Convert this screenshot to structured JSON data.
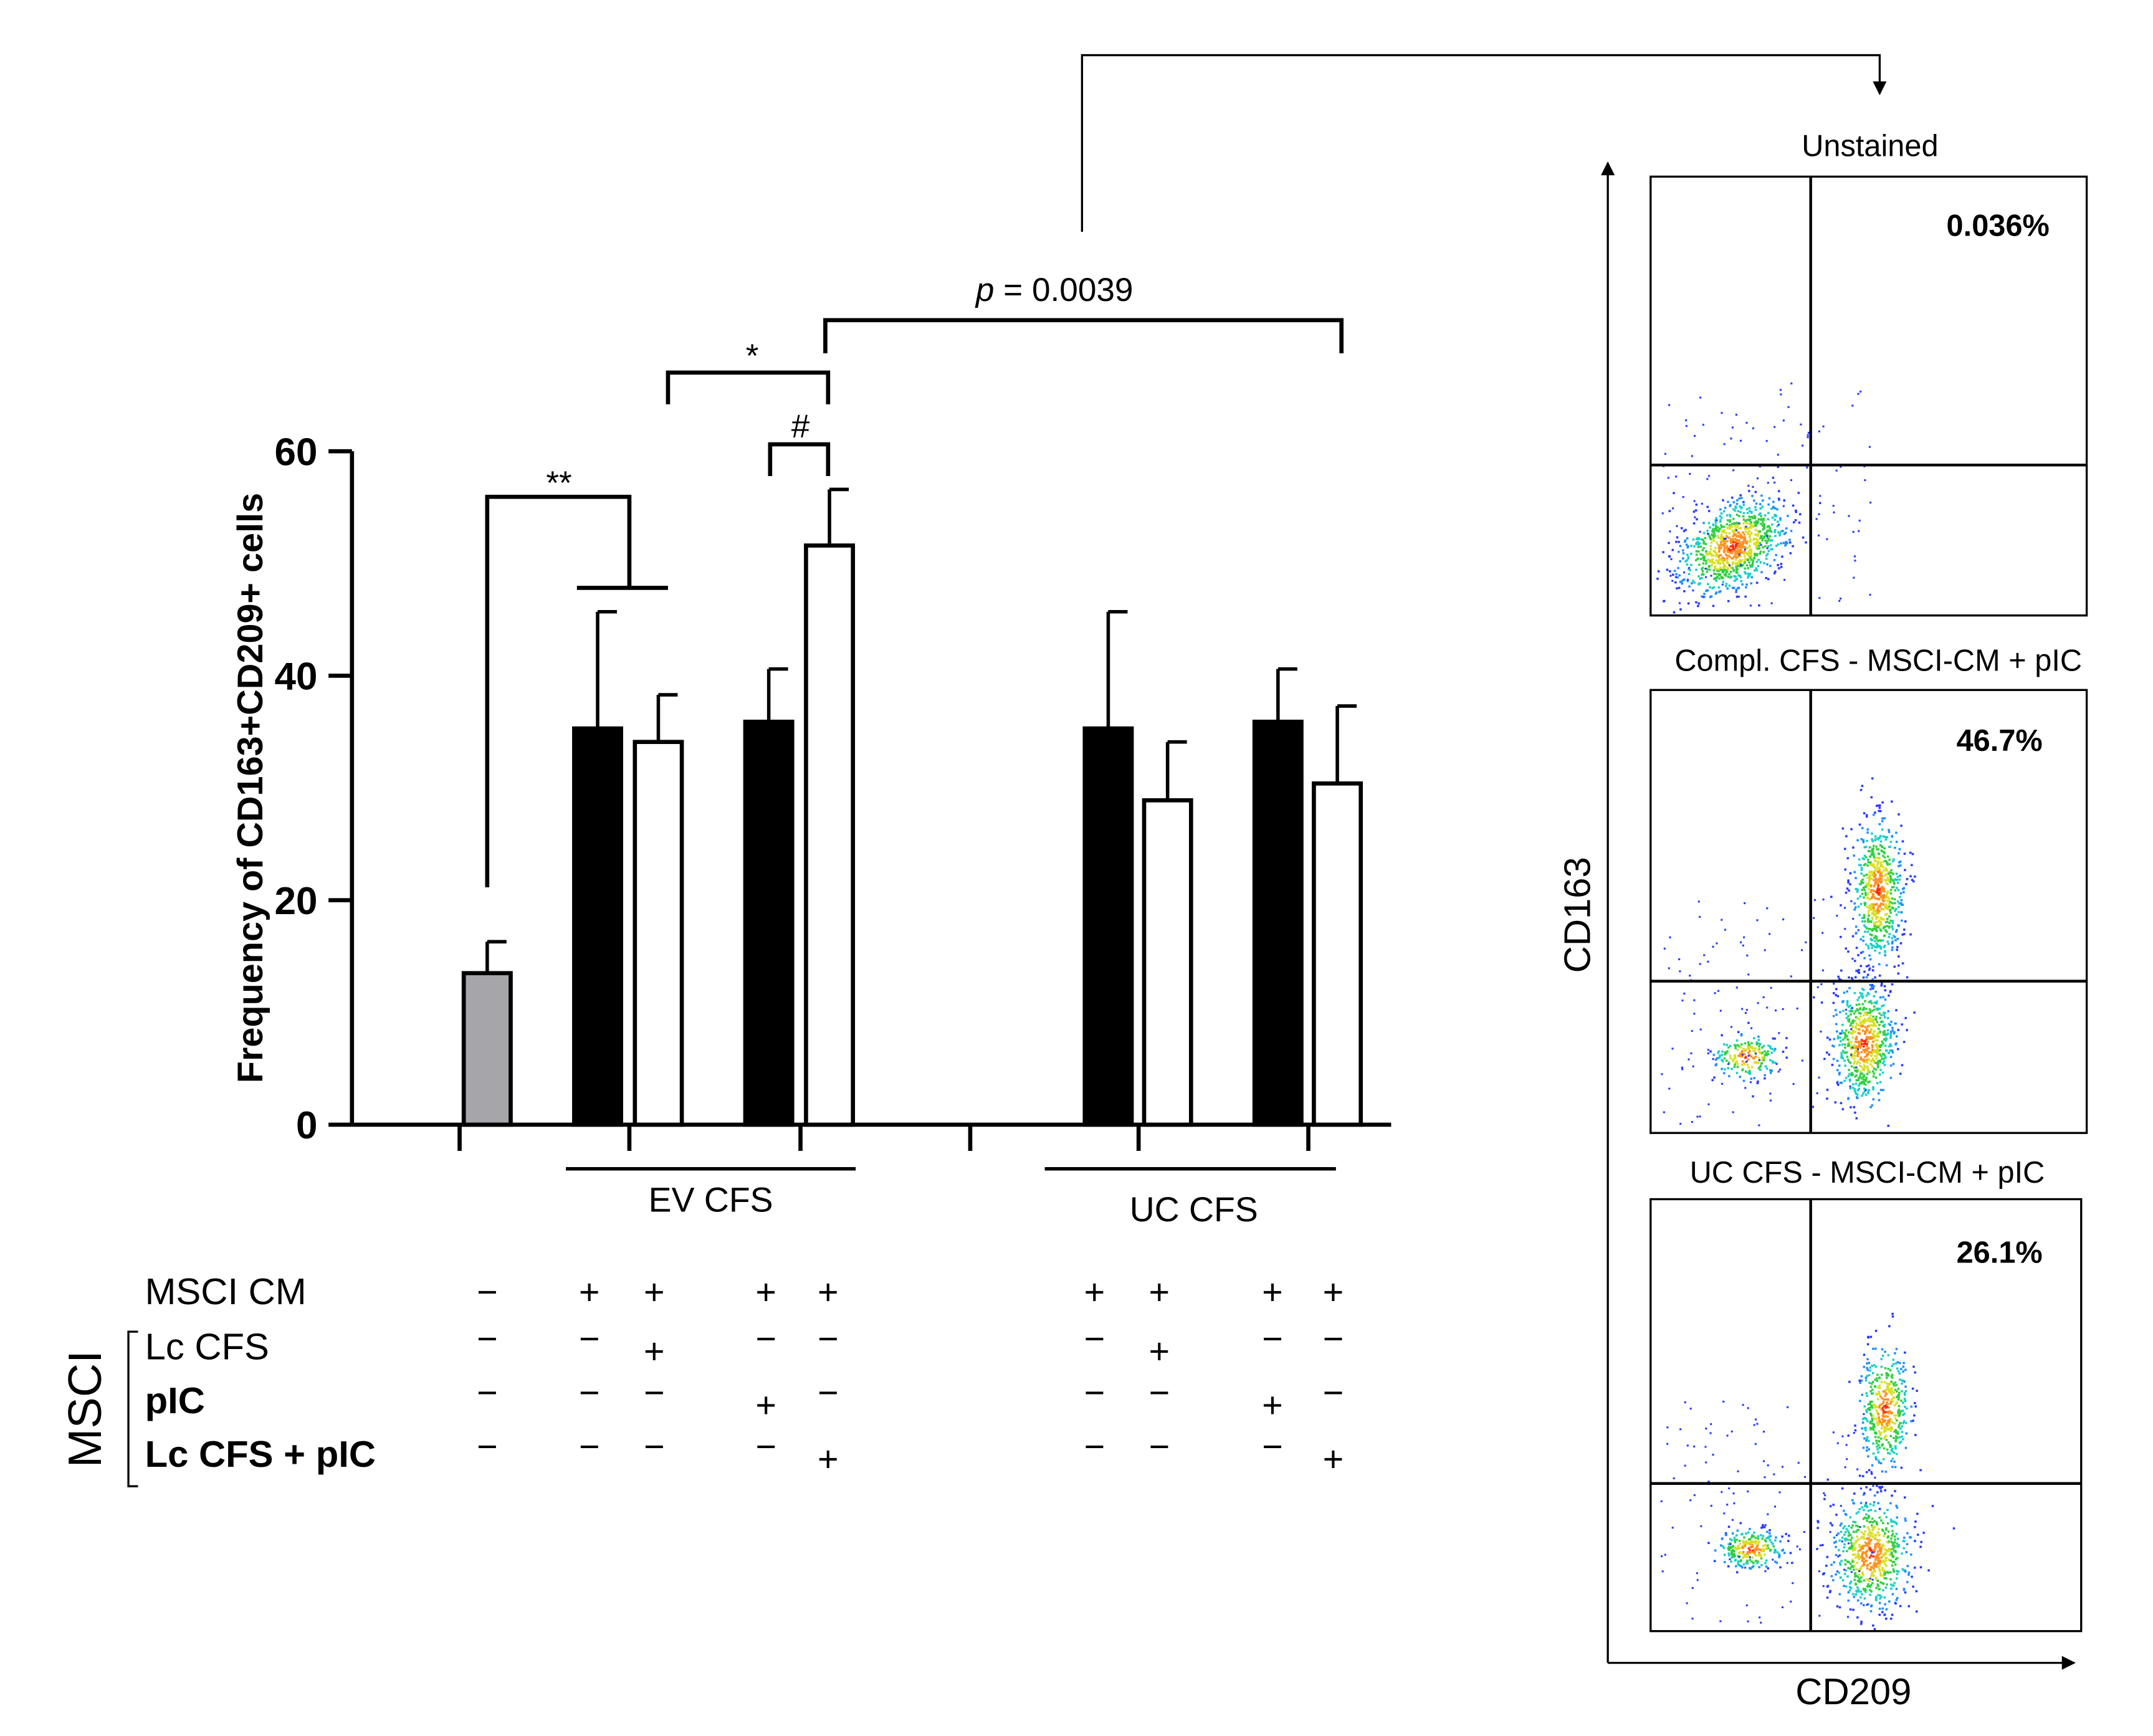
{
  "chart_data": {
    "type": "bar",
    "ylabel": "Frequency of CD163+CD209+ cells",
    "ylim": [
      0,
      60
    ],
    "yticks": [
      0,
      20,
      40,
      60
    ],
    "colors": {
      "grey": "#a6a6aa",
      "black": "#000000",
      "white": "#ffffff"
    },
    "bars": [
      {
        "value": 13.5,
        "err": 2.8,
        "fill": "grey"
      },
      {
        "value": 35.3,
        "err": 10.4,
        "fill": "black"
      },
      {
        "value": 34.1,
        "err": 4.2,
        "fill": "white"
      },
      {
        "value": 35.9,
        "err": 4.7,
        "fill": "black"
      },
      {
        "value": 51.6,
        "err": 5.0,
        "fill": "white"
      },
      {
        "value": 35.3,
        "err": 10.4,
        "fill": "black"
      },
      {
        "value": 28.9,
        "err": 5.2,
        "fill": "white"
      },
      {
        "value": 35.9,
        "err": 4.7,
        "fill": "black"
      },
      {
        "value": 30.4,
        "err": 6.9,
        "fill": "white"
      }
    ],
    "groups": [
      "EV CFS",
      "UC CFS"
    ],
    "significance": {
      "double_star": "**",
      "star": "*",
      "hash": "#",
      "p_symbol": "p",
      "p_value": " = 0.0039"
    },
    "conditions": {
      "group_label": "MSCI",
      "rows": [
        {
          "label": "MSCI CM",
          "bold": false,
          "marks": [
            "−",
            "+",
            "+",
            "+",
            "+",
            "+",
            "+",
            "+",
            "+"
          ]
        },
        {
          "label": "Lc CFS",
          "bold": false,
          "marks": [
            "−",
            "−",
            "+",
            "−",
            "−",
            "−",
            "+",
            "−",
            "−"
          ]
        },
        {
          "label": "pIC",
          "bold": true,
          "marks": [
            "−",
            "−",
            "−",
            "+",
            "−",
            "−",
            "−",
            "+",
            "−"
          ]
        },
        {
          "label": "Lc CFS + pIC",
          "bold": true,
          "marks": [
            "−",
            "−",
            "−",
            "−",
            "+",
            "−",
            "−",
            "−",
            "+"
          ]
        }
      ]
    },
    "flow_panels": [
      {
        "title": "Unstained",
        "percent": "0.036%"
      },
      {
        "title": "Compl. CFS - MSCI-CM + pIC",
        "percent": "46.7%"
      },
      {
        "title": "UC CFS - MSCI-CM + pIC",
        "percent": "26.1%"
      }
    ],
    "flow_axes": {
      "x": "CD209",
      "y": "CD163"
    }
  }
}
